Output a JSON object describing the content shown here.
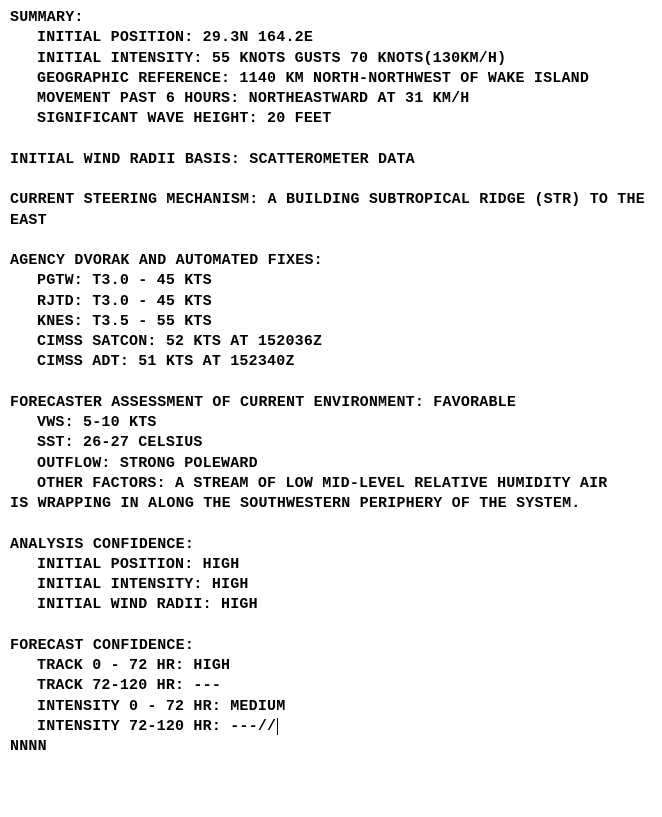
{
  "summary": {
    "heading": "SUMMARY:",
    "initial_position": "INITIAL POSITION: 29.3N 164.2E",
    "initial_intensity": "INITIAL INTENSITY: 55 KNOTS GUSTS 70 KNOTS(130KM/H)",
    "geographic_reference": "GEOGRAPHIC REFERENCE: 1140 KM NORTH-NORTHWEST OF WAKE ISLAND",
    "movement": "MOVEMENT PAST 6 HOURS: NORTHEASTWARD AT 31 KM/H",
    "wave_height": "SIGNIFICANT WAVE HEIGHT: 20 FEET"
  },
  "wind_radii_basis": "INITIAL WIND RADII BASIS: SCATTEROMETER DATA",
  "steering": "CURRENT STEERING MECHANISM: A BUILDING SUBTROPICAL RIDGE (STR) TO THE EAST",
  "fixes": {
    "heading": "AGENCY DVORAK AND AUTOMATED FIXES:",
    "pgtw": "PGTW: T3.0 - 45 KTS",
    "rjtd": "RJTD: T3.0 - 45 KTS",
    "knes": "KNES: T3.5 - 55 KTS",
    "satcon": "CIMSS SATCON: 52 KTS AT 152036Z",
    "adt": "CIMSS ADT: 51 KTS AT 152340Z"
  },
  "environment": {
    "heading": "FORECASTER ASSESSMENT OF CURRENT ENVIRONMENT: FAVORABLE",
    "vws": "VWS: 5-10 KTS",
    "sst": "SST: 26-27 CELSIUS",
    "outflow": "OUTFLOW: STRONG POLEWARD",
    "other": "OTHER FACTORS: A STREAM OF LOW MID-LEVEL RELATIVE HUMIDITY AIR",
    "other_cont": "IS WRAPPING IN ALONG THE SOUTHWESTERN PERIPHERY OF THE SYSTEM."
  },
  "analysis": {
    "heading": "ANALYSIS CONFIDENCE:",
    "position": "INITIAL POSITION: HIGH",
    "intensity": "INITIAL INTENSITY: HIGH",
    "radii": "INITIAL WIND RADII: HIGH"
  },
  "forecast": {
    "heading": "FORECAST CONFIDENCE:",
    "track_0_72": "TRACK 0 - 72 HR: HIGH",
    "track_72_120": "TRACK 72-120 HR: ---",
    "intensity_0_72": "INTENSITY 0 - 72 HR: MEDIUM",
    "intensity_72_120": "INTENSITY 72-120 HR: ---//"
  },
  "terminator": "NNNN"
}
